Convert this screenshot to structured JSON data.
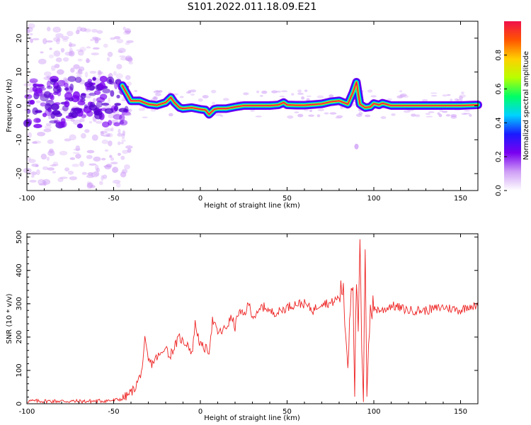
{
  "title": "S101.2022.011.18.09.E21",
  "chart_data": [
    {
      "type": "heatmap",
      "xlabel": "Height of straight line (km)",
      "ylabel": "Frequency (Hz)",
      "xlim": [
        -100,
        160
      ],
      "ylim": [
        -25,
        25
      ],
      "x_ticks": [
        -100,
        -50,
        0,
        50,
        100,
        150
      ],
      "y_ticks": [
        -20,
        -10,
        0,
        10,
        20
      ],
      "ridge": {
        "x": [
          -45,
          -40,
          -35,
          -30,
          -25,
          -20,
          -17,
          -15,
          -12,
          -10,
          -5,
          0,
          3,
          5,
          8,
          10,
          15,
          20,
          25,
          30,
          40,
          45,
          48,
          50,
          55,
          60,
          65,
          70,
          75,
          80,
          85,
          88,
          90,
          92,
          95,
          98,
          100,
          103,
          105,
          110,
          115,
          120,
          130,
          140,
          150,
          160
        ],
        "y": [
          6,
          1.5,
          1.5,
          0.5,
          0.2,
          1,
          2.5,
          1,
          -0.5,
          -0.8,
          -0.5,
          -1,
          -1.2,
          -2.5,
          -1,
          -0.8,
          -0.8,
          -0.3,
          0.1,
          0.1,
          0.1,
          0.3,
          1,
          0.3,
          0.2,
          0.2,
          0.4,
          0.6,
          1.2,
          1.5,
          0.5,
          4,
          7,
          0.5,
          -0.5,
          -0.3,
          0.7,
          0.3,
          0.8,
          0.1,
          0.1,
          0.1,
          0.1,
          0.1,
          0.1,
          0.3
        ]
      },
      "colorbar": {
        "label": "Normalized spectral amplitude",
        "range": [
          0,
          1
        ],
        "ticks": [
          0.0,
          0.2,
          0.4,
          0.6,
          0.8
        ],
        "colors": [
          "#ffffff",
          "#cf9ff6",
          "#7a00f0",
          "#1a1aff",
          "#00d2ff",
          "#00ff66",
          "#b8ff00",
          "#ffd000",
          "#ff5500",
          "#f0104a"
        ]
      }
    },
    {
      "type": "line",
      "xlabel": "Height of straight line (km)",
      "ylabel": "SNR (10 * v/v)",
      "xlim": [
        -100,
        160
      ],
      "ylim": [
        0,
        510
      ],
      "x_ticks": [
        -100,
        -50,
        0,
        50,
        100,
        150
      ],
      "y_ticks": [
        0,
        100,
        200,
        300,
        400,
        500
      ],
      "series": [
        {
          "color": "#ee2222",
          "x": [
            -100,
            -90,
            -80,
            -70,
            -60,
            -50,
            -45,
            -42,
            -38,
            -35,
            -33,
            -32,
            -30,
            -28,
            -25,
            -22,
            -20,
            -18,
            -15,
            -12,
            -10,
            -7,
            -5,
            -3,
            0,
            3,
            5,
            7,
            10,
            12,
            15,
            18,
            20,
            22,
            25,
            28,
            30,
            33,
            35,
            38,
            40,
            45,
            50,
            55,
            60,
            65,
            70,
            75,
            80,
            82,
            85,
            87,
            88,
            89,
            90,
            91,
            92,
            93,
            94,
            95,
            96,
            97,
            98,
            100,
            105,
            110,
            120,
            130,
            140,
            150,
            155,
            160
          ],
          "y": [
            8,
            8,
            8,
            7,
            8,
            10,
            15,
            25,
            45,
            80,
            120,
            190,
            130,
            120,
            140,
            150,
            180,
            140,
            170,
            200,
            185,
            180,
            145,
            240,
            175,
            165,
            160,
            250,
            215,
            215,
            230,
            260,
            230,
            275,
            265,
            300,
            265,
            265,
            290,
            290,
            275,
            275,
            290,
            300,
            300,
            280,
            305,
            300,
            320,
            355,
            120,
            370,
            360,
            50,
            380,
            175,
            505,
            140,
            20,
            430,
            50,
            200,
            285,
            285,
            280,
            295,
            280,
            280,
            290,
            280,
            295,
            290
          ]
        }
      ]
    }
  ]
}
